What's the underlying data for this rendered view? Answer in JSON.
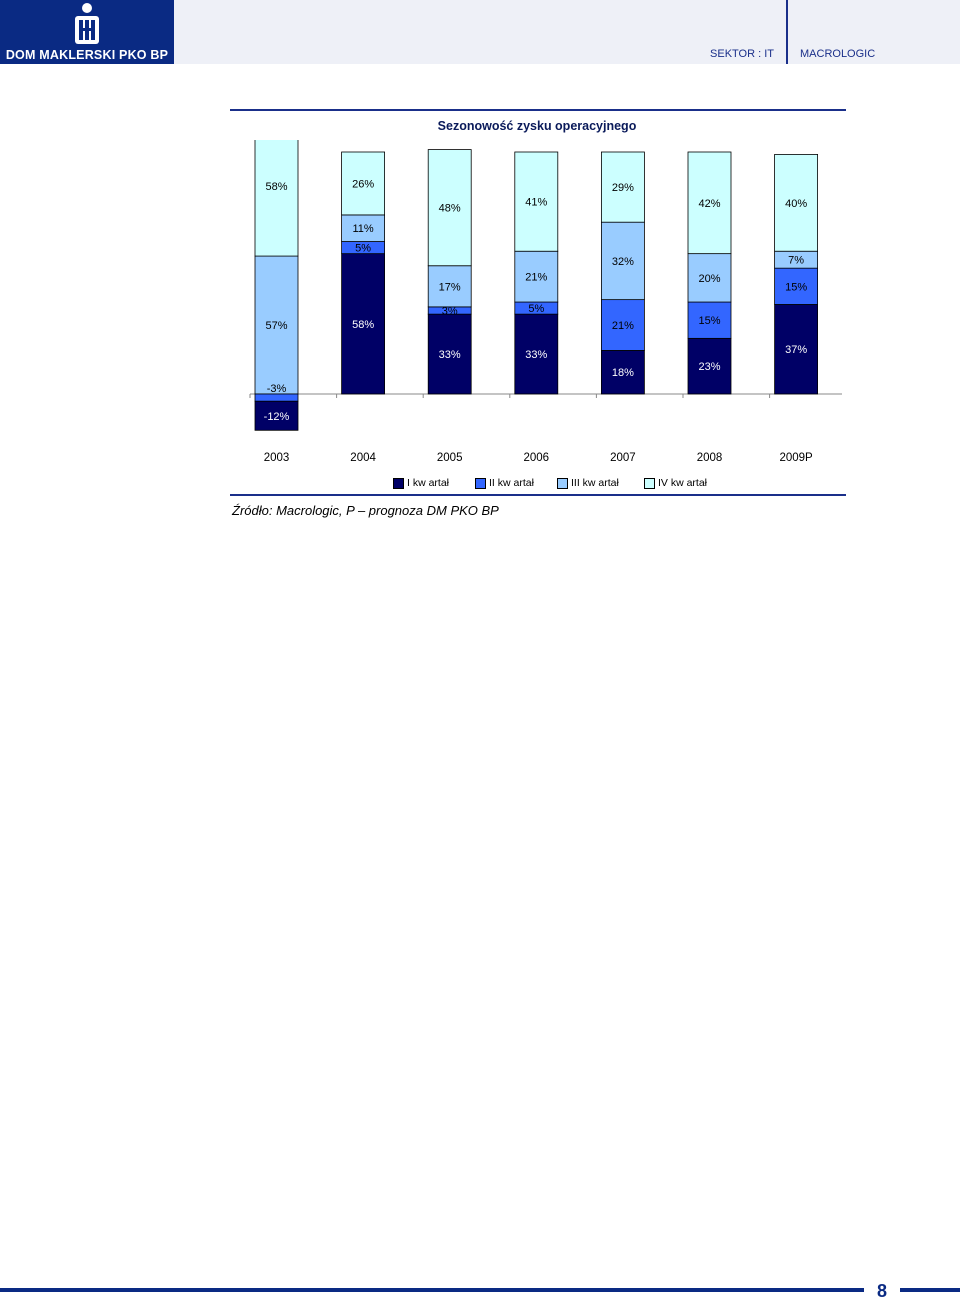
{
  "header": {
    "brand": "DOM MAKLERSKI PKO BP",
    "sector": "SEKTOR : IT",
    "company": "MACROLOGIC",
    "logo_icon": "pko-bp-logo-icon"
  },
  "colors": {
    "brand": "#0a2a83",
    "q1": "#000066",
    "q2": "#3366ff",
    "q3": "#99ccff",
    "q4": "#ccffff"
  },
  "chart_data": {
    "type": "bar",
    "stacked": true,
    "title": "Sezonowość zysku operacyjnego",
    "categories": [
      "2003",
      "2004",
      "2005",
      "2006",
      "2007",
      "2008",
      "2009P"
    ],
    "series": [
      {
        "name": "I kw artał",
        "values": [
          -12,
          58,
          33,
          33,
          18,
          23,
          37
        ],
        "labels": [
          "-12%",
          "58%",
          "33%",
          "33%",
          "18%",
          "23%",
          "37%"
        ]
      },
      {
        "name": "II kw artał",
        "values": [
          -3,
          5,
          3,
          5,
          21,
          15,
          15
        ],
        "labels": [
          "-3%",
          "5%",
          "3%",
          "5%",
          "21%",
          "15%",
          "15%"
        ]
      },
      {
        "name": "III kw artał",
        "values": [
          57,
          11,
          17,
          21,
          32,
          20,
          7
        ],
        "labels": [
          "57%",
          "11%",
          "17%",
          "21%",
          "32%",
          "20%",
          "7%"
        ]
      },
      {
        "name": "IV kw artał",
        "values": [
          58,
          26,
          48,
          41,
          29,
          42,
          40
        ],
        "labels": [
          "58%",
          "26%",
          "48%",
          "41%",
          "29%",
          "42%",
          "40%"
        ]
      }
    ],
    "legend_position": "bottom",
    "grid": false
  },
  "source": "Źródło: Macrologic, P – prognoza DM PKO BP",
  "page_number": "8"
}
